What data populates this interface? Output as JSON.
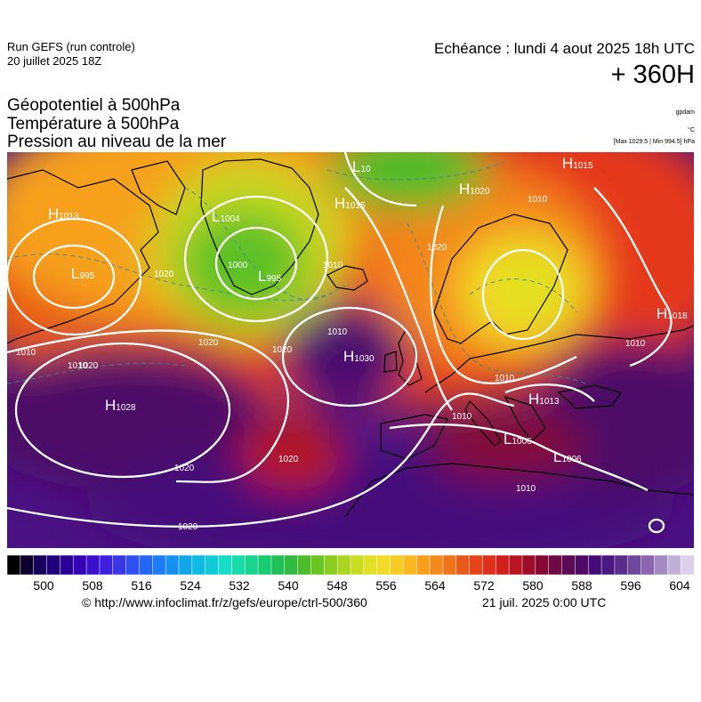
{
  "header": {
    "run_title": "Run GEFS (run controle)",
    "run_date": "20 juillet 2025 18Z",
    "valid_date": "Echéance : lundi 4 aout 2025 18h UTC",
    "lead_time": "+ 360H"
  },
  "parameters": [
    "Géopotentiel à 500hPa",
    "Température à 500hPa",
    "Pression au niveau de la mer"
  ],
  "units": {
    "geopotential": "gpdam",
    "temperature": "°C",
    "pressure": "[Max 1029.5 | Min 994.5] hPa"
  },
  "colorbar": {
    "colors": [
      "#000000",
      "#0c0030",
      "#16005c",
      "#20007a",
      "#2a0099",
      "#3300b5",
      "#3a10cc",
      "#3e20dd",
      "#3a36e8",
      "#2f50f0",
      "#2466f5",
      "#1c7cf5",
      "#1592f0",
      "#10a6e8",
      "#10bae0",
      "#10ccd6",
      "#16dcc8",
      "#18dcaa",
      "#18d490",
      "#16cc70",
      "#20c058",
      "#30b840",
      "#4cbc2c",
      "#6cc422",
      "#8ccc1e",
      "#acd420",
      "#c8dc22",
      "#e2e024",
      "#f0dc26",
      "#f8cc22",
      "#fab820",
      "#f8a01e",
      "#f48a1c",
      "#ee741a",
      "#e85a18",
      "#e44418",
      "#de301a",
      "#d0201e",
      "#b81424",
      "#9e0c2c",
      "#840a36",
      "#6e0a44",
      "#5c0a56",
      "#4c0a66",
      "#440c74",
      "#4a1880",
      "#5a2c8c",
      "#70489a",
      "#8a66ae",
      "#a48ac0",
      "#c0b0d8",
      "#dcd0ec"
    ],
    "tick_labels": [
      "500",
      "508",
      "516",
      "524",
      "532",
      "540",
      "548",
      "556",
      "564",
      "572",
      "580",
      "588",
      "596",
      "604"
    ]
  },
  "map_labels": {
    "highs": [
      {
        "letter": "H",
        "value": "1013"
      },
      {
        "letter": "H",
        "value": "1015"
      },
      {
        "letter": "H",
        "value": "1020"
      },
      {
        "letter": "H",
        "value": "1015"
      },
      {
        "letter": "H",
        "value": "1018"
      },
      {
        "letter": "H",
        "value": "1030"
      },
      {
        "letter": "H",
        "value": "1028"
      },
      {
        "letter": "H",
        "value": "1013"
      }
    ],
    "lows": [
      {
        "letter": "L",
        "value": "995"
      },
      {
        "letter": "L",
        "value": "995"
      },
      {
        "letter": "L",
        "value": "1004"
      },
      {
        "letter": "L",
        "value": "1006"
      },
      {
        "letter": "L",
        "value": "1006"
      },
      {
        "letter": "L",
        "value": "10"
      }
    ],
    "isobars": [
      "1010",
      "1010",
      "1020",
      "1000",
      "1010",
      "1020",
      "1020",
      "1010",
      "1020",
      "1010",
      "1010",
      "1020",
      "1020",
      "1020",
      "1010",
      "1020",
      "1010",
      "1010"
    ]
  },
  "footer": {
    "credit": "© http://www.infoclimat.fr/z/gefs/europe/ctrl-500/360",
    "generated": "21 juil. 2025  0:00 UTC"
  }
}
